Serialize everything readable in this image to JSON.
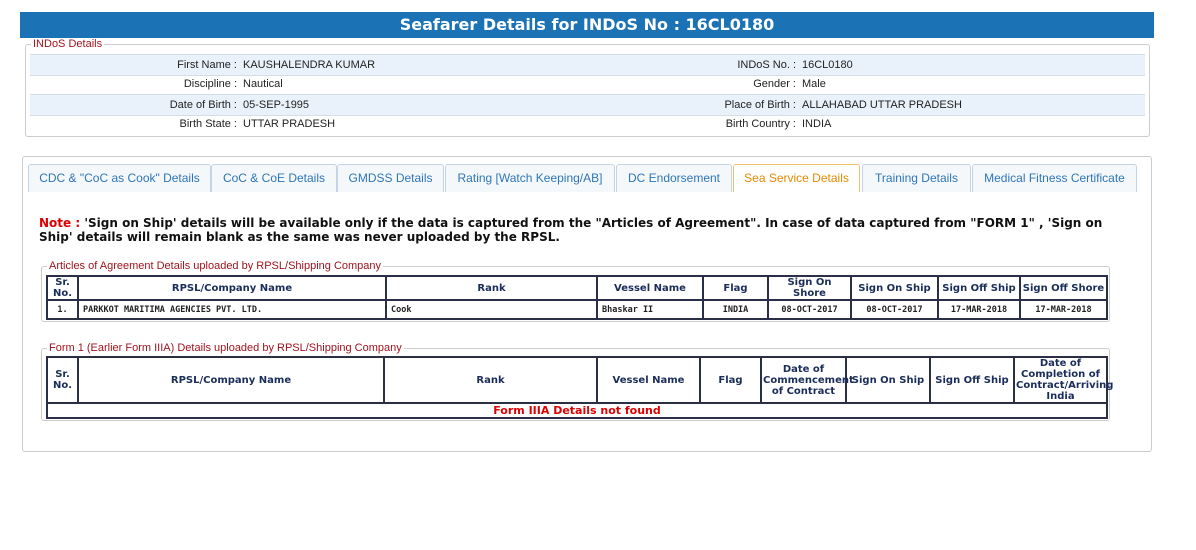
{
  "header": {
    "title": "Seafarer Details for INDoS No : 16CL0180"
  },
  "indos": {
    "legend": "INDoS Details",
    "rows": [
      [
        {
          "label": "First Name :",
          "value": "KAUSHALENDRA KUMAR"
        },
        {
          "label": "INDoS No. :",
          "value": "16CL0180"
        }
      ],
      [
        {
          "label": "Discipline :",
          "value": "Nautical"
        },
        {
          "label": "Gender :",
          "value": "Male"
        }
      ],
      [
        {
          "label": "Date of Birth :",
          "value": "05-SEP-1995"
        },
        {
          "label": "Place of Birth :",
          "value": "ALLAHABAD UTTAR PRADESH"
        }
      ],
      [
        {
          "label": "Birth State :",
          "value": "UTTAR PRADESH"
        },
        {
          "label": "Birth Country :",
          "value": "INDIA"
        }
      ]
    ]
  },
  "tabs": [
    "CDC & \"CoC as Cook\" Details",
    "CoC & CoE Details",
    "GMDSS Details",
    "Rating [Watch Keeping/AB]",
    "DC Endorsement",
    "Sea Service Details",
    "Training Details",
    "Medical Fitness Certificate"
  ],
  "active_tab": 5,
  "note": {
    "label": "Note :",
    "text": "'Sign on Ship' details will be available only if the data is captured from the \"Articles of Agreement\". In case of data captured from \"FORM 1\" , 'Sign on Ship' details will remain blank as the same was never uploaded by the RPSL."
  },
  "articles": {
    "legend": "Articles of Agreement Details uploaded by RPSL/Shipping Company",
    "columns": [
      "Sr. No.",
      "RPSL/Company Name",
      "Rank",
      "Vessel Name",
      "Flag",
      "Sign On Shore",
      "Sign On Ship",
      "Sign Off Ship",
      "Sign Off Shore"
    ],
    "rows": [
      [
        "1.",
        "PARKKOT MARITIMA AGENCIES PVT. LTD.",
        "Cook",
        "Bhaskar II",
        "INDIA",
        "08-OCT-2017",
        "08-OCT-2017",
        "17-MAR-2018",
        "17-MAR-2018"
      ]
    ]
  },
  "form1": {
    "legend": "Form 1 (Earlier Form IIIA) Details uploaded by RPSL/Shipping Company",
    "columns": [
      "Sr. No.",
      "RPSL/Company Name",
      "Rank",
      "Vessel Name",
      "Flag",
      "Date of Commencement of Contract",
      "Sign On Ship",
      "Sign Off Ship",
      "Date of Completion of Contract/Arriving India"
    ],
    "empty": "Form IIIA Details not found"
  }
}
